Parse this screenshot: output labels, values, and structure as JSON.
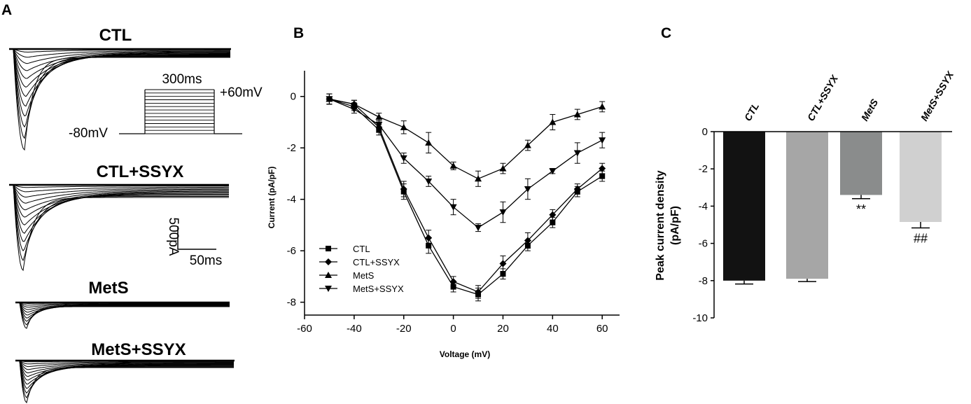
{
  "panels": {
    "a": {
      "label": "A",
      "traces": [
        {
          "title": "CTL"
        },
        {
          "title": "CTL+SSYX"
        },
        {
          "title": "MetS"
        },
        {
          "title": "MetS+SSYX"
        }
      ],
      "protocol": {
        "duration": "300ms",
        "holding": "-80mV",
        "test": "+60mV"
      },
      "scale": {
        "current": "500pA",
        "time": "50ms"
      }
    },
    "b": {
      "label": "B"
    },
    "c": {
      "label": "C"
    }
  },
  "chart_data": [
    {
      "type": "line",
      "panel": "B",
      "title": "",
      "xlabel": "Voltage (mV)",
      "ylabel": "Current (pA/pF)",
      "xlim": [
        -60,
        67
      ],
      "ylim": [
        -8.5,
        1
      ],
      "xticks": [
        -60,
        -40,
        -20,
        0,
        20,
        40,
        60
      ],
      "yticks": [
        0,
        -2,
        -4,
        -6,
        -8
      ],
      "legend_position": "bottom-left",
      "x": [
        -50,
        -40,
        -30,
        -20,
        -10,
        0,
        10,
        20,
        30,
        40,
        50,
        60
      ],
      "series": [
        {
          "name": "CTL",
          "marker": "square",
          "values": [
            -0.1,
            -0.4,
            -1.3,
            -3.7,
            -5.8,
            -7.4,
            -7.7,
            -6.9,
            -5.8,
            -4.9,
            -3.7,
            -3.1
          ],
          "errors": [
            0.2,
            0.15,
            0.2,
            0.3,
            0.3,
            0.2,
            0.25,
            0.2,
            0.2,
            0.2,
            0.2,
            0.2
          ]
        },
        {
          "name": "CTL+SSYX",
          "marker": "diamond",
          "values": [
            -0.1,
            -0.3,
            -1.2,
            -3.6,
            -5.5,
            -7.2,
            -7.6,
            -6.5,
            -5.6,
            -4.6,
            -3.6,
            -2.8
          ],
          "errors": [
            0.2,
            0.15,
            0.2,
            0.3,
            0.3,
            0.2,
            0.25,
            0.3,
            0.3,
            0.2,
            0.2,
            0.2
          ]
        },
        {
          "name": "MetS",
          "marker": "triangle-up",
          "values": [
            -0.1,
            -0.3,
            -0.8,
            -1.2,
            -1.8,
            -2.7,
            -3.2,
            -2.8,
            -1.9,
            -1.0,
            -0.7,
            -0.4
          ],
          "errors": [
            0.2,
            0.15,
            0.15,
            0.25,
            0.4,
            0.15,
            0.3,
            0.2,
            0.2,
            0.3,
            0.2,
            0.2
          ]
        },
        {
          "name": "MetS+SSYX",
          "marker": "triangle-down",
          "values": [
            -0.1,
            -0.5,
            -1.1,
            -2.4,
            -3.3,
            -4.3,
            -5.1,
            -4.5,
            -3.6,
            -2.9,
            -2.2,
            -1.7
          ],
          "errors": [
            0.2,
            0.15,
            0.15,
            0.2,
            0.2,
            0.3,
            0.15,
            0.4,
            0.4,
            0.1,
            0.4,
            0.3
          ]
        }
      ]
    },
    {
      "type": "bar",
      "panel": "C",
      "title": "",
      "xlabel": "",
      "ylabel_line1": "Peak current density",
      "ylabel_line2": "(pA/pF)",
      "ylim": [
        -10,
        0
      ],
      "yticks": [
        0,
        -2,
        -4,
        -6,
        -8,
        -10
      ],
      "categories": [
        "CTL",
        "CTL+SSYX",
        "MetS",
        "MetS+SSYX"
      ],
      "values": [
        -8.0,
        -7.9,
        -3.4,
        -4.85
      ],
      "errors": [
        0.18,
        0.15,
        0.2,
        0.32
      ],
      "colors": [
        "#121212",
        "#a6a6a6",
        "#8a8c8c",
        "#d0d0d0"
      ],
      "significance": [
        "",
        "",
        "**",
        "##"
      ]
    }
  ]
}
